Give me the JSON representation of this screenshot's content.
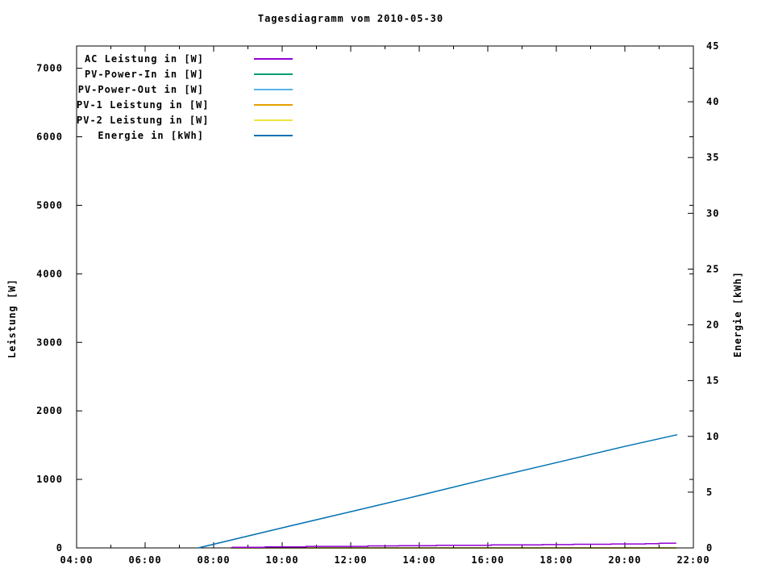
{
  "page": {
    "background": "#ffffff",
    "axis_color": "#000000"
  },
  "chart_data": {
    "type": "line",
    "title": "Tagesdiagramm vom 2010-05-30",
    "grid": false,
    "legend_position": "top-left-inside",
    "axes": {
      "x": {
        "unit": "time",
        "range_hours": [
          4,
          22
        ],
        "major_tick_hours": [
          4,
          6,
          8,
          10,
          12,
          14,
          16,
          18,
          20,
          22
        ],
        "major_tick_labels": [
          "04:00",
          "06:00",
          "08:00",
          "10:00",
          "12:00",
          "14:00",
          "16:00",
          "18:00",
          "20:00",
          "22:00"
        ],
        "minor_tick_hours": [
          5,
          7,
          9,
          11,
          13,
          15,
          17,
          19,
          21
        ]
      },
      "y_left": {
        "label": "Leistung [W]",
        "range": [
          0,
          7325
        ],
        "tick_values": [
          0,
          1000,
          2000,
          3000,
          4000,
          5000,
          6000,
          7000
        ]
      },
      "y_right": {
        "label": "Energie [kWh]",
        "range": [
          0,
          45
        ],
        "tick_values": [
          0,
          5,
          10,
          15,
          20,
          25,
          30,
          35,
          40,
          45
        ]
      }
    },
    "series": [
      {
        "label": "AC Leistung in [W]",
        "color": "#9400d3",
        "axis": "left",
        "points": [
          [
            8.53,
            10
          ],
          [
            9.5,
            10
          ],
          [
            9.5,
            15
          ],
          [
            10.7,
            15
          ],
          [
            10.7,
            22
          ],
          [
            12.5,
            22
          ],
          [
            12.5,
            30
          ],
          [
            13.4,
            30
          ],
          [
            13.4,
            33
          ],
          [
            14.5,
            33
          ],
          [
            14.5,
            38
          ],
          [
            16.1,
            38
          ],
          [
            16.1,
            44
          ],
          [
            17.6,
            44
          ],
          [
            17.6,
            48
          ],
          [
            18.5,
            48
          ],
          [
            18.5,
            53
          ],
          [
            19.6,
            53
          ],
          [
            19.6,
            58
          ],
          [
            20.6,
            58
          ],
          [
            20.6,
            63
          ],
          [
            21.0,
            63
          ],
          [
            21.0,
            68
          ],
          [
            21.5,
            70
          ]
        ]
      },
      {
        "label": "PV-Power-In in [W]",
        "color": "#009e73",
        "axis": "left",
        "points": [
          [
            8.5,
            0
          ],
          [
            21.5,
            0
          ]
        ]
      },
      {
        "label": "PV-Power-Out in [W]",
        "color": "#56b4e9",
        "axis": "left",
        "points": [
          [
            8.5,
            0
          ],
          [
            21.5,
            0
          ]
        ]
      },
      {
        "label": "PV-1 Leistung in [W]",
        "color": "#e69f00",
        "axis": "left",
        "points": [
          [
            8.5,
            0
          ],
          [
            21.5,
            0
          ]
        ]
      },
      {
        "label": "PV-2 Leistung in [W]",
        "color": "#f0e442",
        "axis": "left",
        "points": [
          [
            8.5,
            0
          ],
          [
            21.5,
            0
          ]
        ]
      },
      {
        "label": "Energie in [kWh]",
        "color": "#0072b2",
        "axis": "right",
        "points": [
          [
            7.55,
            0
          ],
          [
            10,
            1.8
          ],
          [
            12,
            3.25
          ],
          [
            14,
            4.7
          ],
          [
            16,
            6.2
          ],
          [
            18,
            7.65
          ],
          [
            20,
            9.1
          ],
          [
            21.53,
            10.15
          ]
        ]
      }
    ]
  }
}
